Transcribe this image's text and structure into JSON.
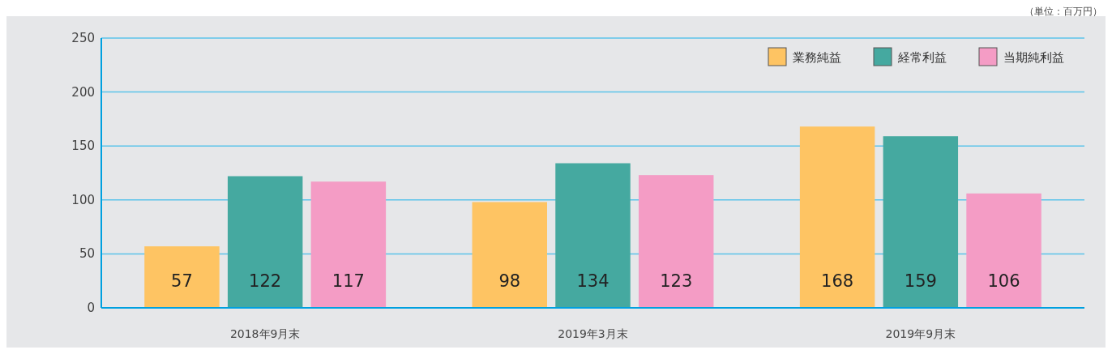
{
  "chart_data": {
    "type": "bar",
    "categories": [
      "2018年9月末",
      "2019年3月末",
      "2019年9月末"
    ],
    "series": [
      {
        "name": "業務純益",
        "color": "#fec463",
        "values": [
          57,
          98,
          168
        ]
      },
      {
        "name": "経常利益",
        "color": "#45a9a0",
        "values": [
          122,
          134,
          159
        ]
      },
      {
        "name": "当期純利益",
        "color": "#f49cc5",
        "values": [
          117,
          123,
          106
        ]
      }
    ],
    "ylim": [
      0,
      250
    ],
    "yticks": [
      0,
      50,
      100,
      150,
      200,
      250
    ],
    "grid": "y",
    "legend": "top right",
    "data_labels": true,
    "annotations": [
      "（単位：百万円）"
    ]
  }
}
